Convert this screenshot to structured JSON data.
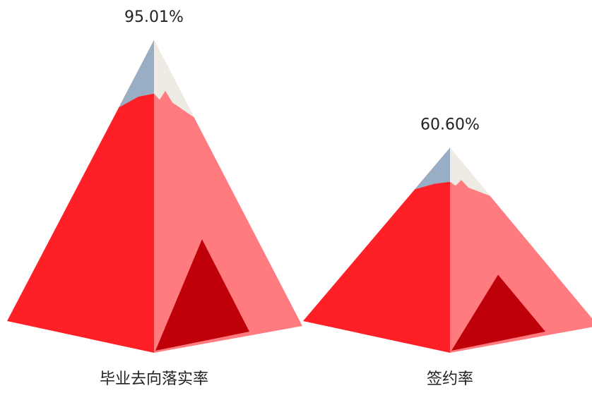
{
  "chart_data": {
    "type": "pictorial-bar",
    "categories": [
      "毕业去向落实率",
      "签约率"
    ],
    "values": [
      95.01,
      60.6
    ],
    "value_labels": [
      "95.01%",
      "60.60%"
    ],
    "color": "#ff1f27"
  }
}
